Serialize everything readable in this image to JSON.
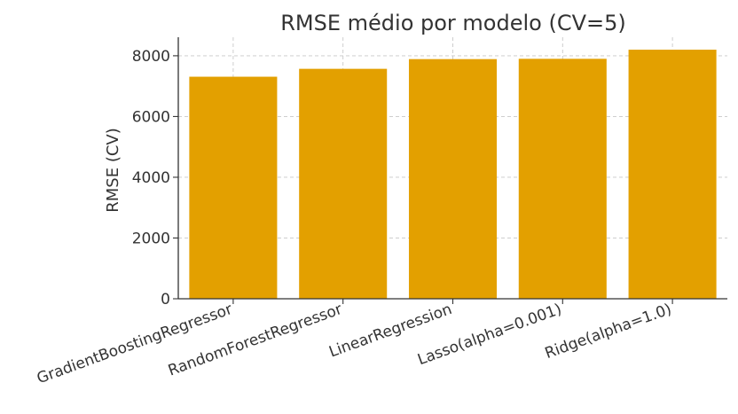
{
  "chart_data": {
    "type": "bar",
    "title": "RMSE médio por modelo (CV=5)",
    "xlabel": "",
    "ylabel": "RMSE (CV)",
    "categories": [
      "GradientBoostingRegressor",
      "RandomForestRegressor",
      "LinearRegression",
      "Lasso(alpha=0.001)",
      "Ridge(alpha=1.0)"
    ],
    "values": [
      7310,
      7570,
      7890,
      7900,
      8200
    ],
    "ylim": [
      0,
      8610
    ],
    "yticks": [
      0,
      2000,
      4000,
      6000,
      8000
    ],
    "grid": true,
    "bar_color": "#E3A000"
  }
}
